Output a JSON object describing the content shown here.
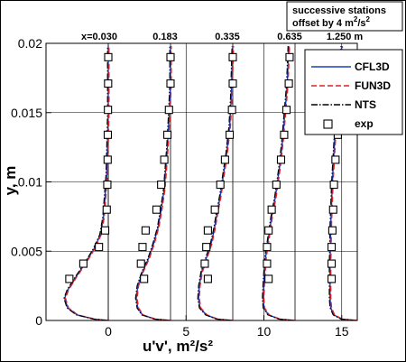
{
  "chart_data": {
    "type": "line",
    "title": "",
    "xlabel": "u'v', m²/s²",
    "ylabel": "y, m",
    "xlim": [
      -4,
      16
    ],
    "ylim": [
      0,
      0.02
    ],
    "x_ticks": [
      {
        "value": 0,
        "label": "0"
      },
      {
        "value": 5,
        "label": "5"
      },
      {
        "value": 10,
        "label": "10"
      },
      {
        "value": 15,
        "label": "15"
      }
    ],
    "y_ticks": [
      {
        "value": 0,
        "label": "0"
      },
      {
        "value": 0.005,
        "label": "0.005"
      },
      {
        "value": 0.01,
        "label": "0.01"
      },
      {
        "value": 0.015,
        "label": "0.015"
      },
      {
        "value": 0.02,
        "label": "0.02"
      }
    ],
    "grid": true,
    "note": {
      "line1": "successive stations",
      "line2": "offset by 4 m",
      "sup": "2",
      "mid": "/s",
      "sup2": "2"
    },
    "stations": [
      {
        "label": "x=0.030",
        "offset": 0
      },
      {
        "label": "0.183",
        "offset": 4
      },
      {
        "label": "0.335",
        "offset": 8
      },
      {
        "label": "0.635",
        "offset": 12
      },
      {
        "label": "1.250 m",
        "offset": 16
      }
    ],
    "legend": {
      "position": "top-right",
      "entries": [
        {
          "name": "CFL3D",
          "style": "solid",
          "color": "#1f3fbf"
        },
        {
          "name": "FUN3D",
          "style": "dashed",
          "color": "#e02020"
        },
        {
          "name": "NTS",
          "style": "dashdot",
          "color": "#000000"
        },
        {
          "name": "exp",
          "style": "square-marker",
          "color": "#000000"
        }
      ]
    },
    "series": [
      {
        "name": "CFL3D",
        "station": 0,
        "points": [
          [
            0,
            0
          ],
          [
            -0.9,
            0.0001
          ],
          [
            -2,
            0.0004
          ],
          [
            -2.6,
            0.0009
          ],
          [
            -2.8,
            0.0016
          ],
          [
            -2.6,
            0.0022
          ],
          [
            -2.1,
            0.0031
          ],
          [
            -1.5,
            0.0041
          ],
          [
            -0.9,
            0.0052
          ],
          [
            -0.5,
            0.0062
          ],
          [
            -0.3,
            0.0075
          ],
          [
            -0.2,
            0.009
          ],
          [
            -0.1,
            0.0105
          ],
          [
            -0.06,
            0.012
          ],
          [
            -0.03,
            0.0135
          ],
          [
            0,
            0.015
          ],
          [
            0,
            0.0165
          ],
          [
            0,
            0.0198
          ]
        ]
      },
      {
        "name": "CFL3D",
        "station": 1,
        "points": [
          [
            4,
            0
          ],
          [
            3,
            0.0001
          ],
          [
            2.2,
            0.0004
          ],
          [
            1.9,
            0.0009
          ],
          [
            1.8,
            0.0016
          ],
          [
            1.9,
            0.0025
          ],
          [
            2.2,
            0.0035
          ],
          [
            2.6,
            0.0045
          ],
          [
            2.9,
            0.0055
          ],
          [
            3.2,
            0.0067
          ],
          [
            3.4,
            0.008
          ],
          [
            3.6,
            0.0095
          ],
          [
            3.7,
            0.011
          ],
          [
            3.8,
            0.0125
          ],
          [
            3.9,
            0.0145
          ],
          [
            4,
            0.017
          ],
          [
            4,
            0.0198
          ]
        ]
      },
      {
        "name": "CFL3D",
        "station": 2,
        "points": [
          [
            8,
            0
          ],
          [
            7,
            0.0001
          ],
          [
            6.3,
            0.0004
          ],
          [
            5.9,
            0.0009
          ],
          [
            5.8,
            0.0016
          ],
          [
            5.85,
            0.0025
          ],
          [
            6,
            0.0035
          ],
          [
            6.3,
            0.0045
          ],
          [
            6.6,
            0.0055
          ],
          [
            6.8,
            0.0065
          ],
          [
            7,
            0.0078
          ],
          [
            7.2,
            0.009
          ],
          [
            7.4,
            0.0105
          ],
          [
            7.6,
            0.012
          ],
          [
            7.8,
            0.014
          ],
          [
            7.9,
            0.016
          ],
          [
            8,
            0.0198
          ]
        ]
      },
      {
        "name": "CFL3D",
        "station": 3,
        "points": [
          [
            12,
            0
          ],
          [
            11,
            0.0001
          ],
          [
            10.3,
            0.0004
          ],
          [
            10,
            0.0009
          ],
          [
            9.95,
            0.0016
          ],
          [
            10,
            0.0028
          ],
          [
            10.1,
            0.0045
          ],
          [
            10.3,
            0.006
          ],
          [
            10.5,
            0.0075
          ],
          [
            10.75,
            0.009
          ],
          [
            11,
            0.011
          ],
          [
            11.2,
            0.013
          ],
          [
            11.35,
            0.015
          ],
          [
            11.5,
            0.017
          ],
          [
            11.6,
            0.0198
          ]
        ]
      },
      {
        "name": "CFL3D",
        "station": 4,
        "points": [
          [
            16,
            0
          ],
          [
            15,
            0.0001
          ],
          [
            14.5,
            0.0004
          ],
          [
            14.3,
            0.0009
          ],
          [
            14.25,
            0.0016
          ],
          [
            14.25,
            0.004
          ],
          [
            14.3,
            0.007
          ],
          [
            14.4,
            0.01
          ],
          [
            14.55,
            0.013
          ],
          [
            14.75,
            0.016
          ],
          [
            14.9,
            0.018
          ],
          [
            15,
            0.0198
          ]
        ]
      }
    ],
    "exp": [
      {
        "station": 0,
        "points": [
          [
            -2.5,
            0.003
          ],
          [
            -1.6,
            0.0041
          ],
          [
            -0.6,
            0.0053
          ],
          [
            -0.2,
            0.0065
          ],
          [
            -0.1,
            0.008
          ],
          [
            -0.06,
            0.0098
          ],
          [
            -0.04,
            0.0116
          ],
          [
            -0.03,
            0.0134
          ],
          [
            -0.02,
            0.0152
          ],
          [
            -0.01,
            0.0171
          ],
          [
            0,
            0.019
          ]
        ]
      },
      {
        "station": 1,
        "points": [
          [
            2.3,
            0.003
          ],
          [
            2.1,
            0.0041
          ],
          [
            2.2,
            0.0053
          ],
          [
            2.4,
            0.0065
          ],
          [
            3.1,
            0.008
          ],
          [
            3.4,
            0.0098
          ],
          [
            3.6,
            0.0116
          ],
          [
            3.8,
            0.0134
          ],
          [
            3.9,
            0.0152
          ],
          [
            4,
            0.0171
          ],
          [
            4,
            0.019
          ]
        ]
      },
      {
        "station": 2,
        "points": [
          [
            6.4,
            0.003
          ],
          [
            6.2,
            0.0041
          ],
          [
            6.3,
            0.0053
          ],
          [
            6.4,
            0.0065
          ],
          [
            6.85,
            0.008
          ],
          [
            7.2,
            0.0098
          ],
          [
            7.5,
            0.0116
          ],
          [
            7.8,
            0.0134
          ],
          [
            7.95,
            0.0152
          ],
          [
            8,
            0.0171
          ],
          [
            8,
            0.019
          ]
        ]
      },
      {
        "station": 3,
        "points": [
          [
            10.3,
            0.003
          ],
          [
            10.2,
            0.0041
          ],
          [
            10.2,
            0.0053
          ],
          [
            10.3,
            0.0065
          ],
          [
            10.5,
            0.008
          ],
          [
            10.8,
            0.0098
          ],
          [
            11.1,
            0.0116
          ],
          [
            11.3,
            0.0134
          ],
          [
            11.45,
            0.0152
          ],
          [
            11.6,
            0.0171
          ],
          [
            11.65,
            0.019
          ]
        ]
      },
      {
        "station": 4,
        "points": [
          [
            14.35,
            0.003
          ],
          [
            14.35,
            0.0041
          ],
          [
            14.35,
            0.0053
          ],
          [
            14.4,
            0.0065
          ],
          [
            14.45,
            0.008
          ],
          [
            14.5,
            0.0098
          ],
          [
            14.6,
            0.0116
          ],
          [
            14.75,
            0.0134
          ]
        ]
      }
    ]
  }
}
